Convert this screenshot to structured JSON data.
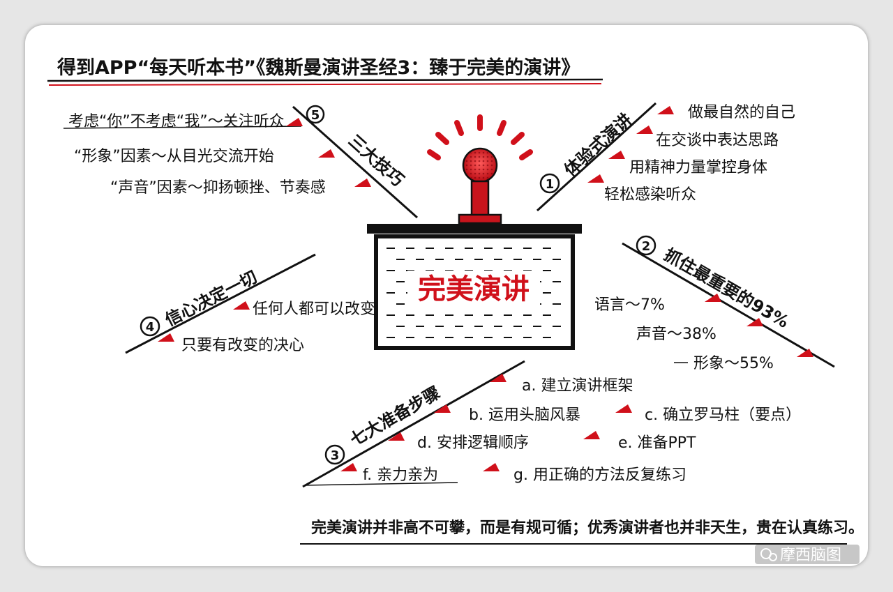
{
  "title": "得到APP“每天听本书”《魏斯曼演讲圣经3：臻于完美的演讲》",
  "center_label": "完美演讲",
  "branches": {
    "b1": {
      "number": "1",
      "label": "体验式演讲",
      "items": [
        "做最自然的自己",
        "在交谈中表达思路",
        "用精神力量掌控身体",
        "轻松感染听众"
      ]
    },
    "b2": {
      "number": "2",
      "label": "抓住最重要的93%",
      "items": [
        "语言～7%",
        "声音～38%",
        "形象～55%"
      ]
    },
    "b3": {
      "number": "3",
      "label": "七大准备步骤",
      "items": [
        "a. 建立演讲框架",
        "b. 运用头脑风暴",
        "c. 确立罗马柱（要点）",
        "d. 安排逻辑顺序",
        "e. 准备PPT",
        "f. 亲力亲为",
        "g. 用正确的方法反复练习"
      ]
    },
    "b4": {
      "number": "4",
      "label": "信心决定一切",
      "items": [
        "任何人都可以改变",
        "只要有改变的决心"
      ]
    },
    "b5": {
      "number": "5",
      "label": "三大技巧",
      "items": [
        "考虑“你”不考虑“我”～关注听众",
        "“形象”因素～从目光交流开始",
        "“声音”因素～抑扬顿挫、节奏感"
      ]
    }
  },
  "footer": "完美演讲并非高不可攀，而是有规可循；优秀演讲者也并非天生，贵在认真练习。",
  "watermark": "摩西脑图",
  "colors": {
    "accent": "#d0101a",
    "ink": "#111111"
  }
}
